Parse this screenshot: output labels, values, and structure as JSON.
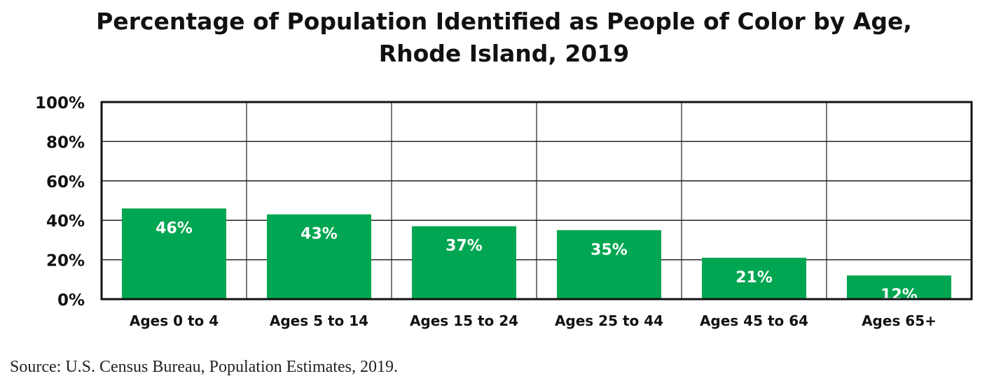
{
  "chart_data": {
    "type": "bar",
    "title": "Percentage of Population Identified as People of Color by Age, Rhode Island, 2019",
    "title_lines": [
      "Percentage of Population Identified as People of Color by Age,",
      "Rhode Island, 2019"
    ],
    "categories": [
      "Ages 0 to 4",
      "Ages 5 to 14",
      "Ages 15 to 24",
      "Ages 25 to 44",
      "Ages 45 to 64",
      "Ages 65+"
    ],
    "values": [
      46,
      43,
      37,
      35,
      21,
      12
    ],
    "data_labels": [
      "46%",
      "43%",
      "37%",
      "35%",
      "21%",
      "12%"
    ],
    "ylim": [
      0,
      100
    ],
    "yticks": [
      0,
      20,
      40,
      60,
      80,
      100
    ],
    "ytick_labels": [
      "0%",
      "20%",
      "40%",
      "60%",
      "80%",
      "100%"
    ],
    "xlabel": "",
    "ylabel": "",
    "grid": true,
    "legend": "none",
    "bar_color": "#00a651",
    "label_color": "#ffffff"
  },
  "source": "Source: U.S. Census Bureau, Population Estimates, 2019."
}
